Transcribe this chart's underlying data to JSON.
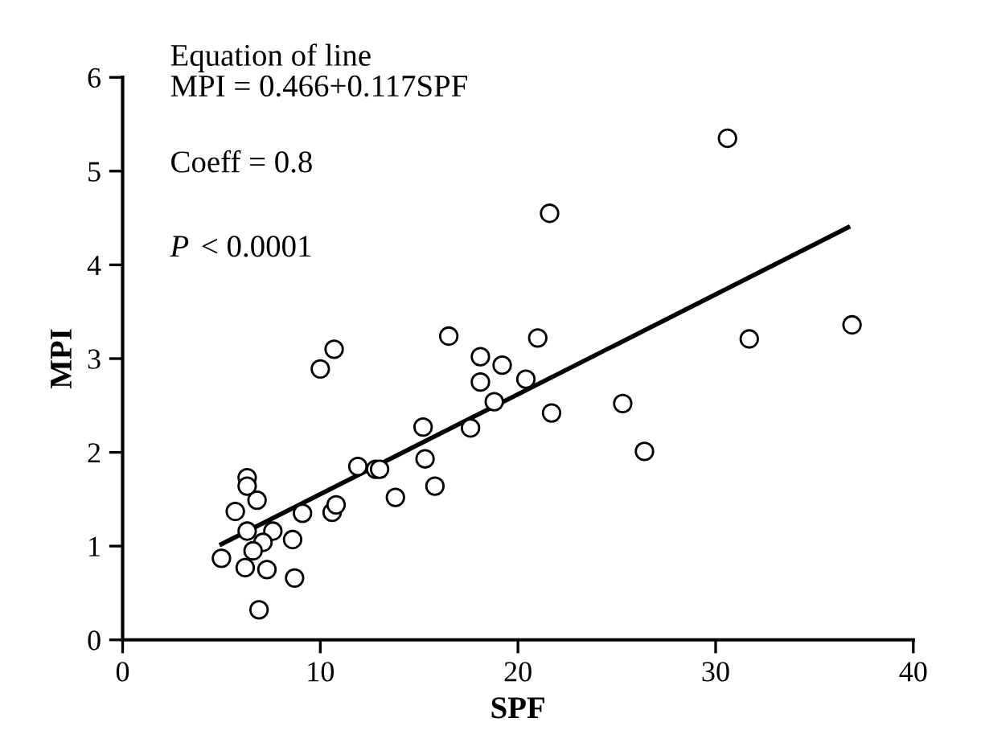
{
  "chart_data": {
    "type": "scatter",
    "xlabel": "SPF",
    "ylabel": "MPI",
    "xlim": [
      0,
      40
    ],
    "ylim": [
      0,
      6
    ],
    "xticks": [
      0,
      10,
      20,
      30,
      40
    ],
    "yticks": [
      0,
      1,
      2,
      3,
      4,
      5,
      6
    ],
    "grid": false,
    "legend": false,
    "annotations": [
      "Equation of line",
      "MPI = 0.466+0.117SPF",
      "Coeff = 0.8",
      "P < 0.0001"
    ],
    "series": [
      {
        "marker": "circle",
        "color": "#000000",
        "x": [
          6.3,
          6.3,
          6.8,
          5.7,
          6.3,
          7.6,
          7.1,
          8.6,
          6.6,
          5.0,
          6.2,
          7.3,
          8.7,
          9.1,
          10.6,
          10.8,
          11.9,
          12.8,
          13.0,
          13.8,
          6.9,
          10.0,
          10.7,
          16.5,
          18.1,
          19.2,
          21.0,
          18.1,
          20.4,
          18.8,
          21.7,
          25.3,
          15.2,
          17.6,
          15.3,
          15.8,
          26.4,
          30.6,
          31.7,
          36.9,
          21.6
        ],
        "values": [
          1.73,
          1.64,
          1.49,
          1.37,
          1.16,
          1.16,
          1.04,
          1.07,
          0.95,
          0.87,
          0.77,
          0.75,
          0.66,
          1.35,
          1.36,
          1.44,
          1.85,
          1.82,
          1.82,
          1.52,
          0.32,
          2.89,
          3.1,
          3.24,
          3.02,
          2.93,
          3.22,
          2.75,
          2.78,
          2.54,
          2.42,
          2.52,
          2.27,
          2.26,
          1.93,
          1.64,
          2.01,
          5.35,
          3.21,
          3.36,
          4.55
        ]
      },
      {
        "type": "line",
        "marker": "none",
        "color": "#000000",
        "line_style": "solid",
        "x": [
          5.0,
          36.7
        ],
        "values": [
          1.02,
          4.4
        ]
      }
    ]
  }
}
